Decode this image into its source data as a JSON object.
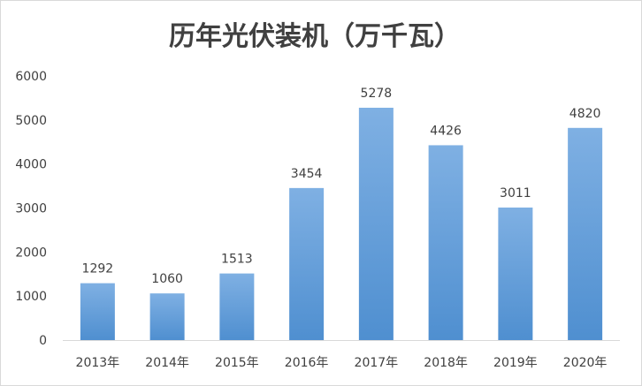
{
  "chart_data": {
    "type": "bar",
    "title": "历年光伏装机（万千瓦）",
    "categories": [
      "2013年",
      "2014年",
      "2015年",
      "2016年",
      "2017年",
      "2018年",
      "2019年",
      "2020年"
    ],
    "values": [
      1292,
      1060,
      1513,
      3454,
      5278,
      4426,
      3011,
      4820
    ],
    "data_labels": [
      "1292",
      "1060",
      "1513",
      "3454",
      "5278",
      "4426",
      "3011",
      "4820"
    ],
    "y_ticks": [
      "0",
      "1000",
      "2000",
      "3000",
      "4000",
      "5000",
      "6000"
    ],
    "ylim": [
      0,
      6000
    ],
    "xlabel": "",
    "ylabel": "",
    "grid": false,
    "legend": "none",
    "colors": {
      "bar_top": "#7fb0e3",
      "bar_bottom": "#4f8fd0",
      "text": "#404040",
      "axis": "#d9d9d9"
    }
  }
}
